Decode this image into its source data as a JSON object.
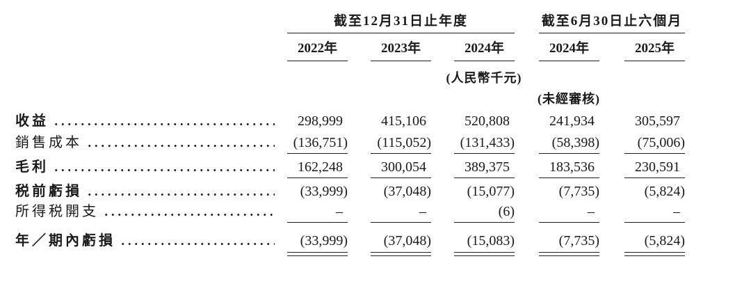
{
  "table": {
    "col_groups": [
      {
        "title": "截至12月31日止年度",
        "years": [
          "2022年",
          "2023年",
          "2024年"
        ]
      },
      {
        "title": "截至6月30日止六個月",
        "years": [
          "2024年",
          "2025年"
        ]
      }
    ],
    "unit_note": "(人民幣千元)",
    "unaudited_note": "(未經審核)",
    "rows": [
      {
        "label": "收益",
        "bold": true,
        "rule": "none",
        "values": [
          "298,999",
          "415,106",
          "520,808",
          "241,934",
          "305,597"
        ]
      },
      {
        "label": "銷售成本",
        "bold": false,
        "rule": "single",
        "values": [
          "(136,751)",
          "(115,052)",
          "(131,433)",
          "(58,398)",
          "(75,006)"
        ]
      },
      {
        "label": "毛利",
        "bold": true,
        "rule": "single",
        "values": [
          "162,248",
          "300,054",
          "389,375",
          "183,536",
          "230,591"
        ]
      },
      {
        "label": "税前虧損",
        "bold": true,
        "rule": "none",
        "values": [
          "(33,999)",
          "(37,048)",
          "(15,077)",
          "(7,735)",
          "(5,824)"
        ]
      },
      {
        "label": "所得税開支",
        "bold": false,
        "rule": "single",
        "values": [
          "–",
          "–",
          "(6)",
          "–",
          "–"
        ]
      },
      {
        "label": "年／期內虧損",
        "bold": true,
        "rule": "double",
        "values": [
          "(33,999)",
          "(37,048)",
          "(15,083)",
          "(7,735)",
          "(5,824)"
        ]
      }
    ]
  },
  "colors": {
    "text": "#1a1a1a",
    "rule": "#1b1b1b",
    "background": "#ffffff"
  }
}
